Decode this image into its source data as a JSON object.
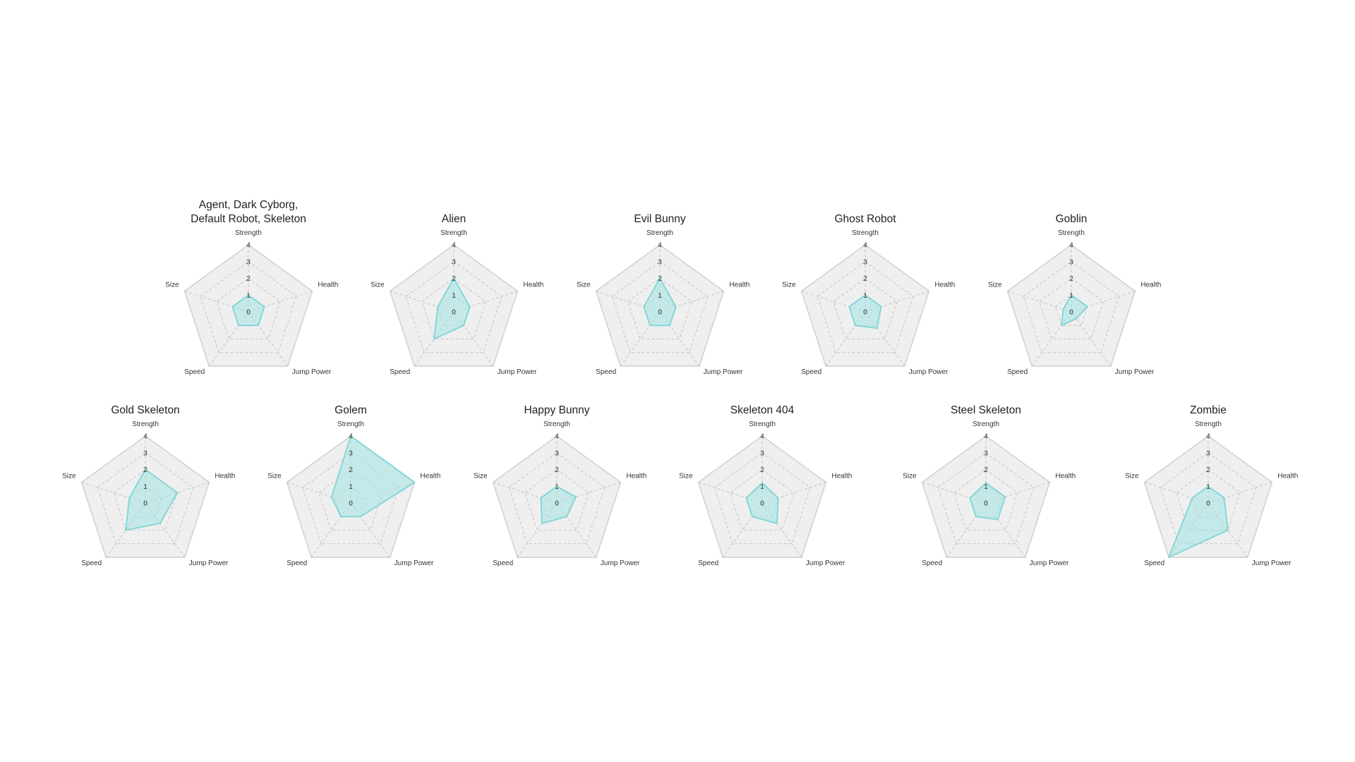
{
  "style": {
    "background": "#ffffff",
    "panel_fill": "#efefef",
    "outer_stroke": "#d2d2d2",
    "grid_stroke": "#c4c4c4",
    "series_fill": "#a8e4e4",
    "series_stroke": "#86d6d6"
  },
  "chart_data": [
    {
      "type": "radar",
      "title": [
        "Agent, Dark Cyborg,",
        "Default Robot, Skeleton"
      ],
      "axes": [
        "Strength",
        "Health",
        "Jump Power",
        "Speed",
        "Size"
      ],
      "rlim": [
        0,
        4
      ],
      "ticks": [
        "0",
        "1",
        "2",
        "3",
        "4"
      ],
      "grid": true,
      "values": [
        1,
        1,
        1,
        1,
        1
      ]
    },
    {
      "type": "radar",
      "title": [
        "Alien"
      ],
      "axes": [
        "Strength",
        "Health",
        "Jump Power",
        "Speed",
        "Size"
      ],
      "rlim": [
        0,
        4
      ],
      "ticks": [
        "0",
        "1",
        "2",
        "3",
        "4"
      ],
      "grid": true,
      "values": [
        2,
        1,
        1,
        2,
        1
      ]
    },
    {
      "type": "radar",
      "title": [
        "Evil Bunny"
      ],
      "axes": [
        "Strength",
        "Health",
        "Jump Power",
        "Speed",
        "Size"
      ],
      "rlim": [
        0,
        4
      ],
      "ticks": [
        "0",
        "1",
        "2",
        "3",
        "4"
      ],
      "grid": true,
      "values": [
        2,
        1,
        1,
        1,
        1
      ]
    },
    {
      "type": "radar",
      "title": [
        "Ghost Robot"
      ],
      "axes": [
        "Strength",
        "Health",
        "Jump Power",
        "Speed",
        "Size"
      ],
      "rlim": [
        0,
        4
      ],
      "ticks": [
        "0",
        "1",
        "2",
        "3",
        "4"
      ],
      "grid": true,
      "values": [
        1,
        1,
        1.2,
        1,
        1
      ]
    },
    {
      "type": "radar",
      "title": [
        "Goblin"
      ],
      "axes": [
        "Strength",
        "Health",
        "Jump Power",
        "Speed",
        "Size"
      ],
      "rlim": [
        0,
        4
      ],
      "ticks": [
        "0",
        "1",
        "2",
        "3",
        "4"
      ],
      "grid": true,
      "values": [
        1,
        1,
        0.5,
        1,
        0.5
      ]
    },
    {
      "type": "radar",
      "title": [
        "Gold Skeleton"
      ],
      "axes": [
        "Strength",
        "Health",
        "Jump Power",
        "Speed",
        "Size"
      ],
      "rlim": [
        0,
        4
      ],
      "ticks": [
        "0",
        "1",
        "2",
        "3",
        "4"
      ],
      "grid": true,
      "values": [
        2,
        2,
        1.5,
        2,
        1
      ]
    },
    {
      "type": "radar",
      "title": [
        "Golem"
      ],
      "axes": [
        "Strength",
        "Health",
        "Jump Power",
        "Speed",
        "Size"
      ],
      "rlim": [
        0,
        4
      ],
      "ticks": [
        "0",
        "1",
        "2",
        "3",
        "4"
      ],
      "grid": true,
      "values": [
        4,
        4,
        1,
        1,
        1.2
      ]
    },
    {
      "type": "radar",
      "title": [
        "Happy Bunny"
      ],
      "axes": [
        "Strength",
        "Health",
        "Jump Power",
        "Speed",
        "Size"
      ],
      "rlim": [
        0,
        4
      ],
      "ticks": [
        "0",
        "1",
        "2",
        "3",
        "4"
      ],
      "grid": true,
      "values": [
        1,
        1.2,
        1,
        1.5,
        1
      ]
    },
    {
      "type": "radar",
      "title": [
        "Skeleton 404"
      ],
      "axes": [
        "Strength",
        "Health",
        "Jump Power",
        "Speed",
        "Size"
      ],
      "rlim": [
        0,
        4
      ],
      "ticks": [
        "0",
        "1",
        "2",
        "3",
        "4"
      ],
      "grid": true,
      "values": [
        1.2,
        1,
        1.5,
        1,
        1
      ]
    },
    {
      "type": "radar",
      "title": [
        "Steel Skeleton"
      ],
      "axes": [
        "Strength",
        "Health",
        "Jump Power",
        "Speed",
        "Size"
      ],
      "rlim": [
        0,
        4
      ],
      "ticks": [
        "0",
        "1",
        "2",
        "3",
        "4"
      ],
      "grid": true,
      "values": [
        1.2,
        1.2,
        1.2,
        1,
        1
      ]
    },
    {
      "type": "radar",
      "title": [
        "Zombie"
      ],
      "axes": [
        "Strength",
        "Health",
        "Jump Power",
        "Speed",
        "Size"
      ],
      "rlim": [
        0,
        4
      ],
      "ticks": [
        "0",
        "1",
        "2",
        "3",
        "4"
      ],
      "grid": true,
      "values": [
        1,
        1,
        2,
        4,
        1
      ]
    }
  ]
}
